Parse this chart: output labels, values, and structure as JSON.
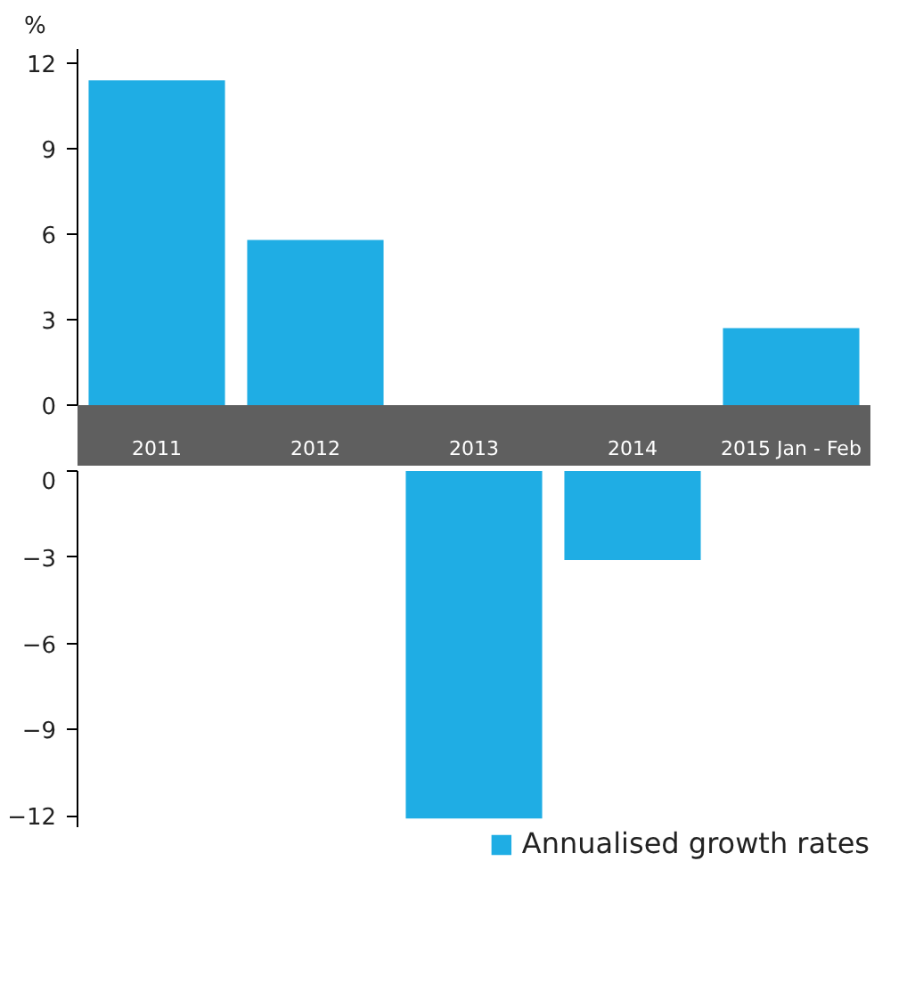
{
  "chart_data": [
    {
      "type": "bar",
      "ylabel": "%",
      "categories": [
        "2011",
        "2012",
        "2013",
        "2014",
        "2015 Jan - Feb"
      ],
      "series": [
        {
          "color": "#1fade4",
          "values": [
            11.4,
            5.8,
            null,
            null,
            2.7
          ]
        }
      ],
      "ylim": [
        0,
        12.5
      ],
      "yticks": [
        0,
        3,
        6,
        9,
        12
      ],
      "grid": false
    },
    {
      "type": "bar",
      "categories": [
        null,
        null,
        null,
        null,
        null
      ],
      "series": [
        {
          "name": "Annualised growth rates",
          "color": "#1fade4",
          "values": [
            null,
            null,
            -12.1,
            -3.1,
            null
          ]
        }
      ],
      "ylim": [
        -12.4,
        0
      ],
      "yticks": [
        0,
        -3,
        -6,
        -9,
        -12
      ],
      "tick_labels": "y",
      "legend": "bottom right",
      "grid": false
    }
  ]
}
